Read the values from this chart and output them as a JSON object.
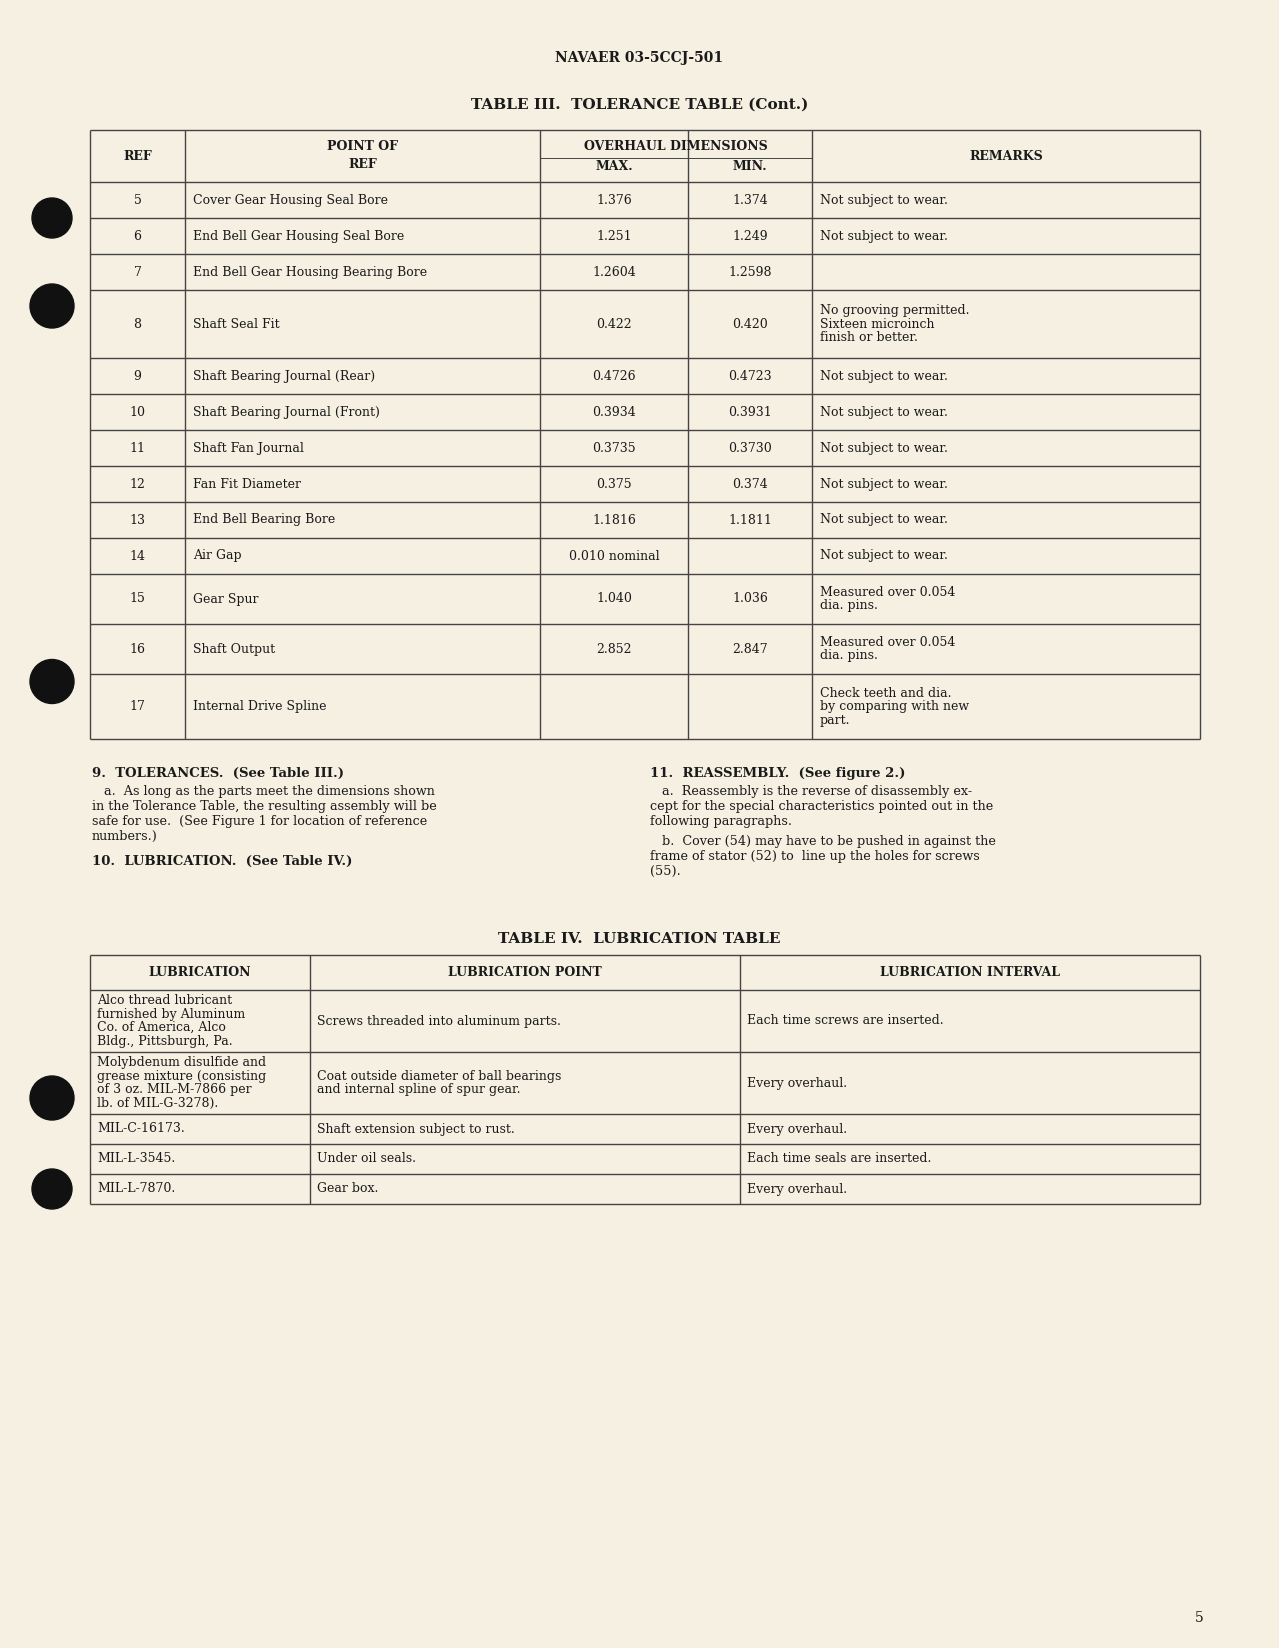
{
  "page_header": "NAVAER 03-5CCJ-501",
  "table3_title": "TABLE III.  TOLERANCE TABLE (Cont.)",
  "table3_col_headers_line1": [
    "",
    "POINT OF",
    "OVERHAUL DIMENSIONS",
    "",
    ""
  ],
  "table3_col_headers_line2": [
    "REF",
    "REF",
    "MAX.",
    "MIN.",
    "REMARKS"
  ],
  "table3_rows": [
    [
      "5",
      "Cover Gear Housing Seal Bore",
      "1.376",
      "1.374",
      "Not subject to wear."
    ],
    [
      "6",
      "End Bell Gear Housing Seal Bore",
      "1.251",
      "1.249",
      "Not subject to wear."
    ],
    [
      "7",
      "End Bell Gear Housing Bearing Bore",
      "1.2604",
      "1.2598",
      ""
    ],
    [
      "8",
      "Shaft Seal Fit",
      "0.422",
      "0.420",
      "No grooving permitted.\nSixteen microinch\nfinish or better."
    ],
    [
      "9",
      "Shaft Bearing Journal (Rear)",
      "0.4726",
      "0.4723",
      "Not subject to wear."
    ],
    [
      "10",
      "Shaft Bearing Journal (Front)",
      "0.3934",
      "0.3931",
      "Not subject to wear."
    ],
    [
      "11",
      "Shaft Fan Journal",
      "0.3735",
      "0.3730",
      "Not subject to wear."
    ],
    [
      "12",
      "Fan Fit Diameter",
      "0.375",
      "0.374",
      "Not subject to wear."
    ],
    [
      "13",
      "End Bell Bearing Bore",
      "1.1816",
      "1.1811",
      "Not subject to wear."
    ],
    [
      "14",
      "Air Gap",
      "0.010 nominal",
      "",
      "Not subject to wear."
    ],
    [
      "15",
      "Gear Spur",
      "1.040",
      "1.036",
      "Measured over 0.054\ndia. pins."
    ],
    [
      "16",
      "Shaft Output",
      "2.852",
      "2.847",
      "Measured over 0.054\ndia. pins."
    ],
    [
      "17",
      "Internal Drive Spline",
      "",
      "",
      "Check teeth and dia.\nby comparing with new\npart."
    ]
  ],
  "para9_title": "9.  TOLERANCES.  (See Table III.)",
  "para9_body": [
    "   a.  As long as the parts meet the dimensions shown",
    "in the Tolerance Table, the resulting assembly will be",
    "safe for use.  (See Figure 1 for location of reference",
    "numbers.)"
  ],
  "para10_title": "10.  LUBRICATION.  (See Table IV.)",
  "para11_title": "11.  REASSEMBLY.  (See figure 2.)",
  "para11a_body": [
    "   a.  Reassembly is the reverse of disassembly ex-",
    "cept for the special characteristics pointed out in the",
    "following paragraphs."
  ],
  "para11b_body": [
    "   b.  Cover (54) may have to be pushed in against the",
    "frame of stator (52) to  line up the holes for screws",
    "(55)."
  ],
  "table4_title": "TABLE IV.  LUBRICATION TABLE",
  "table4_col_headers": [
    "LUBRICATION",
    "LUBRICATION POINT",
    "LUBRICATION INTERVAL"
  ],
  "table4_rows": [
    [
      "Alco thread lubricant\nfurnished by Aluminum\nCo. of America, Alco\nBldg., Pittsburgh, Pa.",
      "Screws threaded into aluminum parts.",
      "Each time screws are inserted."
    ],
    [
      "Molybdenum disulfide and\ngrease mixture (consisting\nof 3 oz. MIL-M-7866 per\nlb. of MIL-G-3278).",
      "Coat outside diameter of ball bearings\nand internal spline of spur gear.",
      "Every overhaul."
    ],
    [
      "MIL-C-16173.",
      "Shaft extension subject to rust.",
      "Every overhaul."
    ],
    [
      "MIL-L-3545.",
      "Under oil seals.",
      "Each time seals are inserted."
    ],
    [
      "MIL-L-7870.",
      "Gear box.",
      "Every overhaul."
    ]
  ],
  "page_number": "5",
  "bg_color": "#f5f0e2",
  "text_color": "#1a1a1a",
  "line_color": "#444444"
}
